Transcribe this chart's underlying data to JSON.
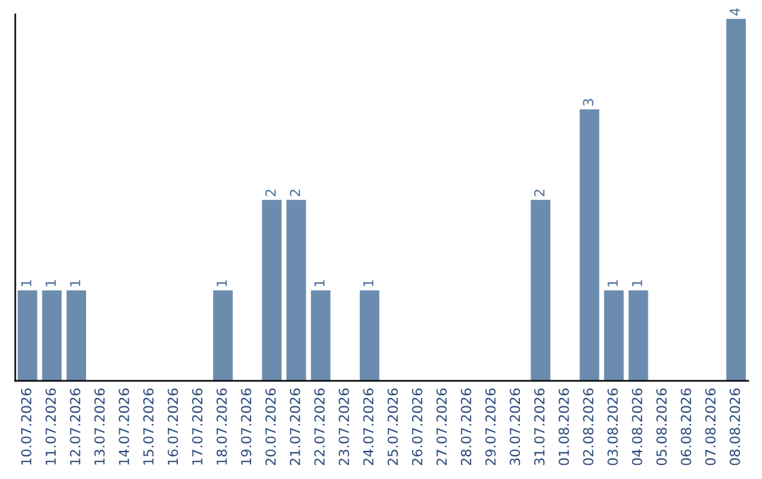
{
  "chart_data": {
    "type": "bar",
    "categories": [
      "10.07.2026",
      "11.07.2026",
      "12.07.2026",
      "13.07.2026",
      "14.07.2026",
      "15.07.2026",
      "16.07.2026",
      "17.07.2026",
      "18.07.2026",
      "19.07.2026",
      "20.07.2026",
      "21.07.2026",
      "22.07.2026",
      "23.07.2026",
      "24.07.2026",
      "25.07.2026",
      "26.07.2026",
      "27.07.2026",
      "28.07.2026",
      "29.07.2026",
      "30.07.2026",
      "31.07.2026",
      "01.08.2026",
      "02.08.2026",
      "03.08.2026",
      "04.08.2026",
      "05.08.2026",
      "06.08.2026",
      "07.08.2026",
      "08.08.2026"
    ],
    "values": [
      1,
      1,
      1,
      0,
      0,
      0,
      0,
      0,
      1,
      0,
      2,
      2,
      1,
      0,
      1,
      0,
      0,
      0,
      0,
      0,
      0,
      2,
      0,
      3,
      1,
      1,
      0,
      0,
      0,
      4
    ],
    "value_labels": [
      "1",
      "1",
      "1",
      null,
      null,
      null,
      null,
      null,
      "1",
      null,
      "2",
      "2",
      "1",
      null,
      "1",
      null,
      null,
      null,
      null,
      null,
      null,
      "2",
      null,
      "3",
      "1",
      "1",
      null,
      null,
      null,
      "4"
    ],
    "color": "#6b8cae",
    "ylim": [
      0,
      4.05
    ],
    "tick_labels": "x",
    "grid": false,
    "legend": false
  }
}
